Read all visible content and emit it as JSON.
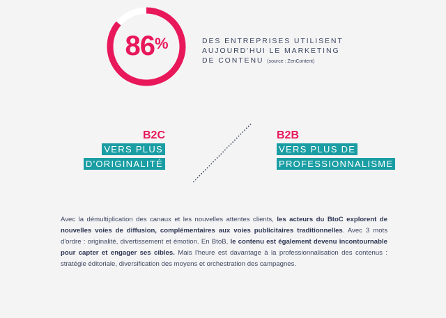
{
  "stat": {
    "value": "86",
    "unit": "%",
    "progress": 0.86,
    "lines": [
      "DES ENTREPRISES UTILISENT",
      "AUJOURD'HUI LE MARKETING",
      "DE CONTENU"
    ],
    "source": "(source : ZenContent)",
    "ring_color": "#e8185a",
    "track_color": "#ffffff"
  },
  "b2c": {
    "label": "B2C",
    "lines": [
      "VERS PLUS",
      "D'ORIGINALITÉ"
    ]
  },
  "b2b": {
    "label": "B2B",
    "lines": [
      "VERS PLUS DE",
      "PROFESSIONNALISME"
    ]
  },
  "colors": {
    "accent": "#e8185a",
    "teal": "#1a9ea4",
    "text": "#3d4660"
  },
  "paragraph": {
    "p1": "Avec la démultiplication des canaux et les nouvelles attentes clients, ",
    "b1": "les acteurs du BtoC explorent de nouvelles voies de diffusion, complémentaires aux voies publicitaires traditionnelles",
    "p2": ". Avec 3 mots d'ordre : originalité, divertissement et émotion. En BtoB, ",
    "b2": "le contenu est également devenu incontournable pour capter et engager ses cibles.",
    "p3": " Mais l'heure est davantage à la professionnalisation des contenus : stratégie éditoriale, diversification des moyens et orchestration des campagnes."
  }
}
